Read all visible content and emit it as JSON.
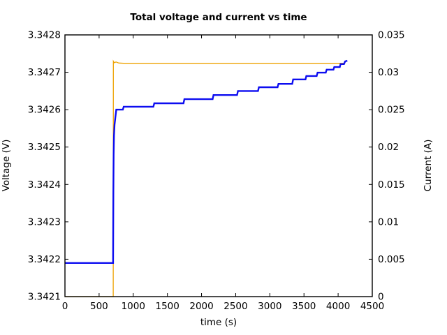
{
  "chart_data": {
    "type": "line",
    "title": "Total voltage and current vs time",
    "xlabel": "time (s)",
    "ylabel_left": "Voltage (V)",
    "ylabel_right": "Current (A)",
    "x_range": [
      0,
      4500
    ],
    "y_left_range": [
      3.3421,
      3.3428
    ],
    "y_right_range": [
      0,
      0.035
    ],
    "grid": false,
    "legend": "none",
    "x_tick_values": [
      0,
      500,
      1000,
      1500,
      2000,
      2500,
      3000,
      3500,
      4000,
      4500
    ],
    "x_tick_labels": [
      "0",
      "500",
      "1000",
      "1500",
      "2000",
      "2500",
      "3000",
      "3500",
      "4000",
      "4500"
    ],
    "y_left_tick_values": [
      3.3421,
      3.3422,
      3.3423,
      3.3424,
      3.3425,
      3.3426,
      3.3427,
      3.3428
    ],
    "y_left_tick_labels": [
      "3.3421",
      "3.3422",
      "3.3423",
      "3.3424",
      "3.3425",
      "3.3426",
      "3.3427",
      "3.3428"
    ],
    "y_right_tick_values": [
      0,
      0.005,
      0.01,
      0.015,
      0.02,
      0.025,
      0.03,
      0.035
    ],
    "y_right_tick_labels": [
      "0",
      "0.005",
      "0.01",
      "0.015",
      "0.02",
      "0.025",
      "0.03",
      "0.035"
    ],
    "colors": {
      "voltage": "#0d0df0",
      "current": "#eea302",
      "axis": "#000000",
      "title": "#000000"
    },
    "series": [
      {
        "name": "current",
        "axis": "right",
        "color": "#eea302",
        "width": 1.3,
        "points": [
          [
            0,
            0
          ],
          [
            707,
            0
          ],
          [
            709,
            0.03148
          ],
          [
            722,
            0.03128
          ],
          [
            748,
            0.03138
          ],
          [
            790,
            0.03124
          ],
          [
            860,
            0.0312
          ],
          [
            4100,
            0.0312
          ]
        ]
      },
      {
        "name": "voltage",
        "axis": "left",
        "color": "#0d0df0",
        "width": 2.4,
        "points": [
          [
            0,
            3.34219
          ],
          [
            705,
            3.34219
          ],
          [
            709,
            3.34238
          ],
          [
            713,
            3.34248
          ],
          [
            718,
            3.34253
          ],
          [
            726,
            3.34256
          ],
          [
            738,
            3.34258
          ],
          [
            752,
            3.3426
          ],
          [
            848,
            3.3426
          ],
          [
            860,
            3.342608
          ],
          [
            1295,
            3.342608
          ],
          [
            1308,
            3.342617
          ],
          [
            1736,
            3.342617
          ],
          [
            1749,
            3.342628
          ],
          [
            2162,
            3.342628
          ],
          [
            2175,
            3.342639
          ],
          [
            2520,
            3.342639
          ],
          [
            2533,
            3.34265
          ],
          [
            2827,
            3.34265
          ],
          [
            2840,
            3.34266
          ],
          [
            3113,
            3.34266
          ],
          [
            3126,
            3.342669
          ],
          [
            3328,
            3.342669
          ],
          [
            3341,
            3.342681
          ],
          [
            3522,
            3.342681
          ],
          [
            3535,
            3.34269
          ],
          [
            3686,
            3.34269
          ],
          [
            3699,
            3.342699
          ],
          [
            3819,
            3.342699
          ],
          [
            3832,
            3.342707
          ],
          [
            3931,
            3.342707
          ],
          [
            3944,
            3.342714
          ],
          [
            4024,
            3.342714
          ],
          [
            4036,
            3.342722
          ],
          [
            4086,
            3.342722
          ],
          [
            4102,
            3.342729
          ],
          [
            4135,
            3.342731
          ]
        ]
      }
    ]
  }
}
